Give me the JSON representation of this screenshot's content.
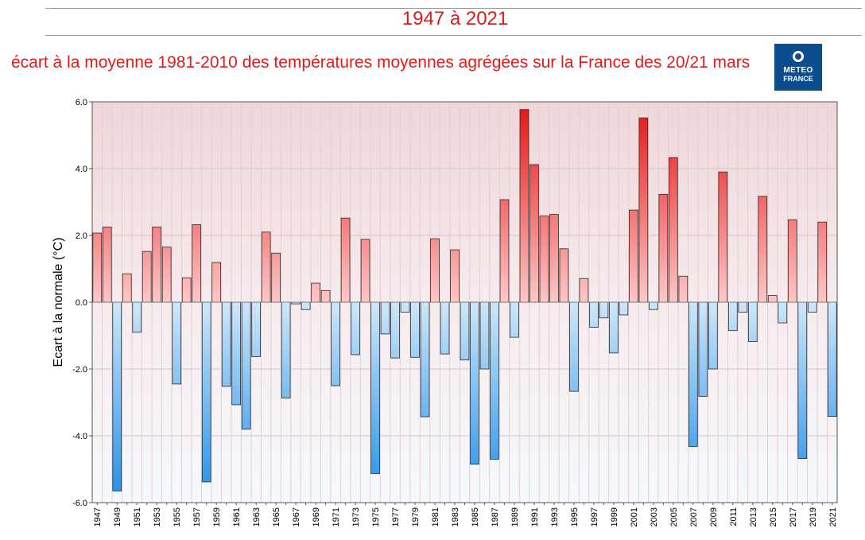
{
  "header": {
    "title": "1947 à 2021",
    "subtitle": "écart à la moyenne 1981-2010 des températures moyennes agrégées sur la France des 20/21 mars",
    "logo_line1": "METEO",
    "logo_line2": "FRANCE"
  },
  "colors": {
    "title": "#e01b1b",
    "positive_dark": "#e81010",
    "positive_light": "#ffc7c7",
    "negative_dark": "#1f8ee8",
    "negative_light": "#cde7fa",
    "logo_bg": "#0b4e8f"
  },
  "chart_data": {
    "type": "bar",
    "title": "1947 à 2021",
    "xlabel": "",
    "ylabel": "Ecart à la normale (°C)",
    "ylim": [
      -6,
      6
    ],
    "yticks": [
      "6.0",
      "4.0",
      "2.0",
      "0.0",
      "-2.0",
      "-4.0",
      "-6.0"
    ],
    "ytick_values": [
      6,
      4,
      2,
      0,
      -2,
      -4,
      -6
    ],
    "grid": true,
    "categories": [
      "1947",
      "1948",
      "1949",
      "1950",
      "1951",
      "1952",
      "1953",
      "1954",
      "1955",
      "1956",
      "1957",
      "1958",
      "1959",
      "1960",
      "1961",
      "1962",
      "1963",
      "1964",
      "1965",
      "1966",
      "1967",
      "1968",
      "1969",
      "1970",
      "1971",
      "1972",
      "1973",
      "1974",
      "1975",
      "1976",
      "1977",
      "1978",
      "1979",
      "1980",
      "1981",
      "1982",
      "1983",
      "1984",
      "1985",
      "1986",
      "1987",
      "1988",
      "1989",
      "1990",
      "1991",
      "1992",
      "1993",
      "1994",
      "1995",
      "1996",
      "1997",
      "1998",
      "1999",
      "2000",
      "2001",
      "2002",
      "2003",
      "2004",
      "2005",
      "2006",
      "2007",
      "2008",
      "2009",
      "2010",
      "2011",
      "2012",
      "2013",
      "2014",
      "2015",
      "2016",
      "2017",
      "2018",
      "2019",
      "2020",
      "2021"
    ],
    "xtick_labels": [
      "1947",
      "1949",
      "1951",
      "1953",
      "1955",
      "1957",
      "1959",
      "1961",
      "1963",
      "1965",
      "1967",
      "1969",
      "1971",
      "1973",
      "1975",
      "1977",
      "1979",
      "1981",
      "1983",
      "1985",
      "1987",
      "1989",
      "1991",
      "1993",
      "1995",
      "1997",
      "1999",
      "2001",
      "2003",
      "2005",
      "2007",
      "2009",
      "2011",
      "2013",
      "2015",
      "2017",
      "2019",
      "2021"
    ],
    "values": [
      2.07,
      2.25,
      -5.65,
      0.85,
      -0.9,
      1.52,
      2.25,
      1.65,
      -2.45,
      0.73,
      2.32,
      -5.38,
      1.19,
      -2.52,
      -3.07,
      -3.8,
      -1.63,
      2.1,
      1.47,
      -2.87,
      -0.05,
      -0.22,
      0.57,
      0.35,
      -2.5,
      2.52,
      -1.57,
      1.88,
      -5.13,
      -0.95,
      -1.67,
      -0.3,
      -1.65,
      -3.43,
      1.9,
      -1.55,
      1.57,
      -1.73,
      -4.85,
      -2.0,
      -4.7,
      3.07,
      -1.05,
      5.77,
      4.12,
      2.58,
      2.63,
      1.6,
      -2.67,
      0.71,
      -0.75,
      -0.47,
      -1.52,
      -0.38,
      2.76,
      5.52,
      -0.22,
      3.23,
      4.33,
      0.78,
      -4.32,
      -2.82,
      -2.0,
      3.9,
      -0.85,
      -0.3,
      -1.18,
      3.17,
      0.2,
      -0.62,
      2.47,
      -4.68,
      -0.3,
      2.4,
      -3.42
    ]
  }
}
